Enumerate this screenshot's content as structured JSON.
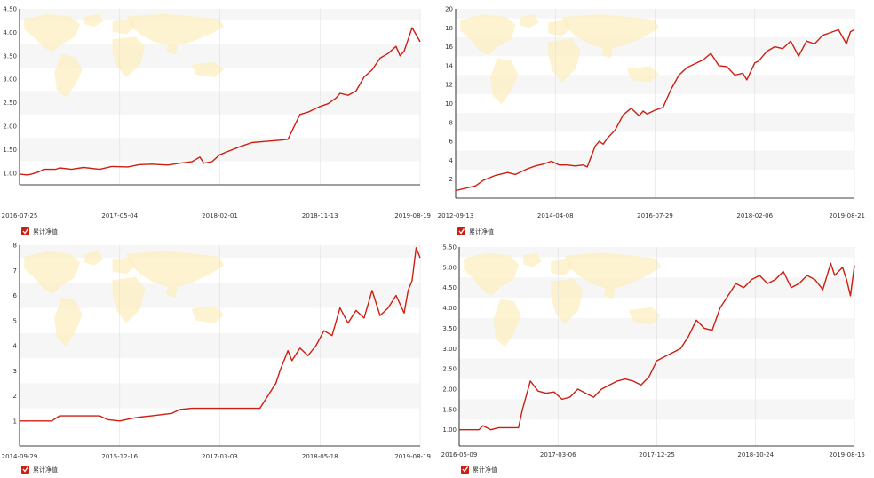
{
  "colors": {
    "series": "#cc1f12",
    "map": "#fcefc2",
    "band": "#f6f6f6",
    "grid": "#e0e0e0",
    "axis": "#000000",
    "text": "#333333"
  },
  "legend_icon": "checkbox-checked-icon",
  "chart_data": [
    {
      "type": "line",
      "legend": {
        "label": "累计净值",
        "placement": "bottom-left"
      },
      "yticks": [
        "1.00",
        "1.50",
        "2.00",
        "2.50",
        "3.00",
        "3.50",
        "4.00",
        "4.50"
      ],
      "ylim": [
        0.75,
        4.5
      ],
      "xticks": [
        "2016-07-25",
        "2017-05-04",
        "2018-02-01",
        "2018-11-13",
        "2019-08-19"
      ],
      "series": [
        {
          "x": [
            0,
            2,
            3,
            5,
            6,
            9,
            10,
            13,
            16,
            20,
            23,
            27,
            30,
            33,
            37,
            40,
            43,
            45,
            46,
            48,
            50,
            52,
            55,
            58,
            62,
            65,
            67,
            70,
            72,
            75,
            77,
            79,
            80,
            82,
            84,
            86,
            88,
            90,
            92,
            94,
            95,
            96,
            97,
            98,
            99,
            100
          ],
          "values": [
            0.98,
            0.96,
            0.98,
            1.03,
            1.08,
            1.08,
            1.11,
            1.08,
            1.12,
            1.08,
            1.14,
            1.13,
            1.18,
            1.19,
            1.17,
            1.21,
            1.24,
            1.34,
            1.21,
            1.24,
            1.39,
            1.46,
            1.56,
            1.65,
            1.68,
            1.7,
            1.72,
            2.25,
            2.3,
            2.42,
            2.48,
            2.6,
            2.7,
            2.66,
            2.75,
            3.05,
            3.2,
            3.45,
            3.55,
            3.7,
            3.5,
            3.6,
            3.85,
            4.1,
            3.95,
            3.8
          ]
        }
      ],
      "grid": false
    },
    {
      "type": "line",
      "legend": {
        "label": "累计净值",
        "placement": "bottom-left"
      },
      "yticks": [
        "2",
        "4",
        "6",
        "8",
        "10",
        "12",
        "14",
        "16",
        "18",
        "20"
      ],
      "ylim": [
        0,
        20
      ],
      "xticks": [
        "2012-09-13",
        "2014-04-08",
        "2016-07-29",
        "2018-02-06",
        "2019-08-21"
      ],
      "series": [
        {
          "x": [
            0,
            3,
            5,
            7,
            10,
            13,
            15,
            18,
            20,
            22,
            24,
            26,
            28,
            30,
            32,
            33,
            35,
            36,
            37,
            38,
            40,
            42,
            44,
            46,
            47,
            48,
            50,
            52,
            54,
            56,
            58,
            60,
            62,
            64,
            66,
            68,
            70,
            72,
            73,
            75,
            76,
            78,
            80,
            82,
            84,
            86,
            88,
            90,
            92,
            94,
            96,
            98,
            99,
            100
          ],
          "values": [
            0.8,
            1.1,
            1.3,
            1.9,
            2.4,
            2.7,
            2.5,
            3.1,
            3.4,
            3.6,
            3.9,
            3.5,
            3.5,
            3.4,
            3.5,
            3.3,
            5.5,
            6.0,
            5.7,
            6.3,
            7.2,
            8.8,
            9.5,
            8.7,
            9.2,
            8.9,
            9.3,
            9.6,
            11.5,
            13.0,
            13.8,
            14.2,
            14.6,
            15.3,
            14.0,
            13.9,
            13.0,
            13.2,
            12.5,
            14.3,
            14.5,
            15.5,
            16.0,
            15.8,
            16.6,
            15.0,
            16.6,
            16.3,
            17.2,
            17.5,
            17.8,
            16.3,
            17.6,
            17.8
          ]
        }
      ],
      "grid": false
    },
    {
      "type": "line",
      "legend": {
        "label": "累计净值",
        "placement": "bottom-left"
      },
      "yticks": [
        "1",
        "2",
        "3",
        "4",
        "5",
        "6",
        "7",
        "8"
      ],
      "ylim": [
        0,
        8
      ],
      "xticks": [
        "2014-09-29",
        "2015-12-16",
        "2017-03-03",
        "2018-05-18",
        "2019-08-19"
      ],
      "series": [
        {
          "x": [
            0,
            5,
            8,
            10,
            12,
            16,
            20,
            22,
            25,
            28,
            30,
            33,
            38,
            40,
            43,
            45,
            48,
            50,
            52,
            55,
            58,
            59,
            60,
            62,
            64,
            65,
            67,
            68,
            70,
            72,
            74,
            76,
            78,
            80,
            82,
            84,
            86,
            88,
            90,
            92,
            94,
            96,
            97,
            98,
            99,
            100
          ],
          "values": [
            1.0,
            1.0,
            1.0,
            1.2,
            1.2,
            1.2,
            1.2,
            1.05,
            1.0,
            1.1,
            1.15,
            1.2,
            1.3,
            1.45,
            1.5,
            1.5,
            1.5,
            1.5,
            1.5,
            1.5,
            1.5,
            1.5,
            1.5,
            2.0,
            2.5,
            3.0,
            3.8,
            3.4,
            3.9,
            3.6,
            4.0,
            4.6,
            4.4,
            5.5,
            4.9,
            5.4,
            5.1,
            6.2,
            5.2,
            5.5,
            6.0,
            5.3,
            6.2,
            6.6,
            7.9,
            7.5
          ]
        }
      ],
      "grid": false
    },
    {
      "type": "line",
      "legend": {
        "label": "累计净值",
        "placement": "bottom-left"
      },
      "yticks": [
        "1.00",
        "1.50",
        "2.00",
        "2.50",
        "3.00",
        "3.50",
        "4.00",
        "4.50",
        "5.00",
        "5.50"
      ],
      "ylim": [
        0.6,
        5.5
      ],
      "xticks": [
        "2016-05-09",
        "2017-03-06",
        "2017-12-25",
        "2018-10-24",
        "2019-08-15"
      ],
      "series": [
        {
          "x": [
            0,
            3,
            5,
            6,
            8,
            10,
            12,
            13,
            15,
            16,
            18,
            20,
            22,
            24,
            26,
            28,
            30,
            32,
            34,
            36,
            38,
            40,
            42,
            44,
            46,
            48,
            50,
            52,
            54,
            56,
            58,
            60,
            62,
            64,
            66,
            68,
            70,
            72,
            74,
            76,
            78,
            80,
            82,
            84,
            86,
            88,
            90,
            92,
            94,
            95,
            96,
            97,
            98,
            99,
            100
          ],
          "values": [
            1.0,
            1.0,
            1.0,
            1.1,
            1.0,
            1.05,
            1.05,
            1.05,
            1.05,
            1.5,
            2.2,
            1.95,
            1.9,
            1.93,
            1.75,
            1.8,
            2.0,
            1.9,
            1.8,
            2.0,
            2.1,
            2.2,
            2.25,
            2.2,
            2.1,
            2.3,
            2.7,
            2.8,
            2.9,
            3.0,
            3.3,
            3.7,
            3.5,
            3.45,
            4.0,
            4.3,
            4.6,
            4.5,
            4.7,
            4.8,
            4.6,
            4.7,
            4.9,
            4.5,
            4.6,
            4.8,
            4.7,
            4.45,
            5.1,
            4.8,
            4.9,
            5.0,
            4.7,
            4.3,
            5.05
          ]
        }
      ],
      "grid": false
    }
  ]
}
